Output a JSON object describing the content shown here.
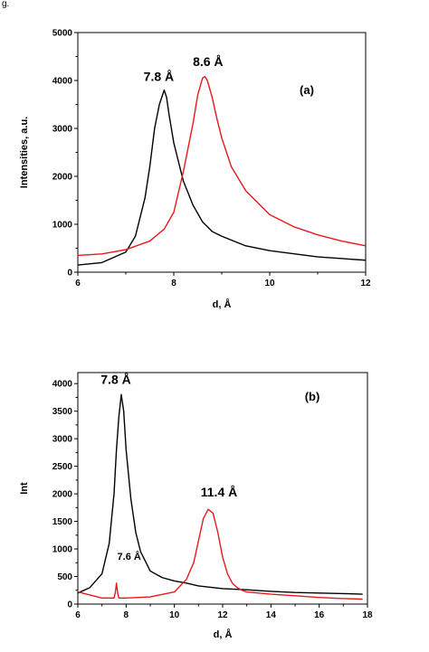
{
  "edge_text": "g.",
  "chart_data": [
    {
      "type": "line",
      "panel_label": "(a)",
      "xlabel": "d, Å",
      "ylabel": "Intensities, a.u.",
      "xlim": [
        6,
        12
      ],
      "ylim": [
        0,
        5000
      ],
      "xticks": [
        "6",
        "8",
        "10",
        "12"
      ],
      "yticks": [
        "0",
        "1000",
        "2000",
        "3000",
        "4000",
        "5000"
      ],
      "grid": false,
      "series": [
        {
          "color": "#000000",
          "x": [
            6.0,
            6.5,
            7.0,
            7.2,
            7.4,
            7.5,
            7.6,
            7.7,
            7.8,
            7.85,
            7.9,
            8.0,
            8.2,
            8.4,
            8.6,
            8.8,
            9.0,
            9.5,
            10.0,
            11.0,
            12.0
          ],
          "y": [
            150,
            200,
            420,
            750,
            1550,
            2200,
            3000,
            3500,
            3800,
            3650,
            3300,
            2700,
            1900,
            1400,
            1050,
            850,
            750,
            550,
            450,
            320,
            250
          ]
        },
        {
          "color": "#e8191c",
          "x": [
            6.0,
            6.5,
            7.0,
            7.5,
            7.8,
            8.0,
            8.2,
            8.4,
            8.5,
            8.6,
            8.65,
            8.7,
            8.8,
            8.9,
            9.0,
            9.2,
            9.5,
            10.0,
            10.5,
            11.0,
            11.5,
            12.0
          ],
          "y": [
            350,
            380,
            470,
            650,
            900,
            1250,
            2100,
            3100,
            3700,
            4050,
            4080,
            4000,
            3650,
            3200,
            2800,
            2200,
            1700,
            1200,
            950,
            780,
            650,
            550
          ]
        }
      ],
      "annotations": [
        {
          "text": "7.8 Å",
          "x": 7.8,
          "y": 3800
        },
        {
          "text": "8.6 Å",
          "x": 8.6,
          "y": 4080
        }
      ]
    },
    {
      "type": "line",
      "panel_label": "(b)",
      "xlabel": "d, Å",
      "ylabel": "Int",
      "xlim": [
        6,
        18
      ],
      "ylim": [
        0,
        4200
      ],
      "xticks": [
        "6",
        "8",
        "10",
        "12",
        "14",
        "16",
        "18"
      ],
      "yticks": [
        "0",
        "500",
        "1000",
        "1500",
        "2000",
        "2500",
        "3000",
        "3500",
        "4000"
      ],
      "grid": false,
      "series": [
        {
          "color": "#000000",
          "x": [
            6.0,
            6.5,
            7.0,
            7.3,
            7.5,
            7.6,
            7.7,
            7.8,
            7.9,
            8.0,
            8.2,
            8.4,
            8.6,
            9.0,
            9.5,
            10.0,
            10.5,
            11.0,
            12.0,
            13.0,
            14.0,
            15.0,
            16.0,
            17.0,
            17.8
          ],
          "y": [
            200,
            300,
            550,
            1100,
            2000,
            2800,
            3400,
            3800,
            3500,
            2800,
            1900,
            1300,
            950,
            600,
            480,
            420,
            380,
            330,
            280,
            260,
            230,
            210,
            200,
            190,
            180
          ]
        },
        {
          "color": "#e8191c",
          "x": [
            6.0,
            7.0,
            7.5,
            7.55,
            7.6,
            7.65,
            7.7,
            8.0,
            9.0,
            10.0,
            10.5,
            10.8,
            11.0,
            11.2,
            11.4,
            11.6,
            11.8,
            12.0,
            12.2,
            12.4,
            12.6,
            12.8,
            13.0,
            14.0,
            15.0,
            16.0,
            17.0,
            17.8
          ],
          "y": [
            220,
            110,
            110,
            200,
            380,
            200,
            110,
            110,
            130,
            220,
            450,
            750,
            1150,
            1550,
            1720,
            1650,
            1300,
            850,
            550,
            380,
            300,
            250,
            220,
            180,
            150,
            120,
            100,
            90
          ]
        }
      ],
      "annotations": [
        {
          "text": "7.8 Å",
          "x": 7.8,
          "y": 3800
        },
        {
          "text": "11.4 Å",
          "x": 11.4,
          "y": 1720
        },
        {
          "text": "7.6 Å",
          "x": 7.6,
          "y": 380
        }
      ]
    }
  ]
}
